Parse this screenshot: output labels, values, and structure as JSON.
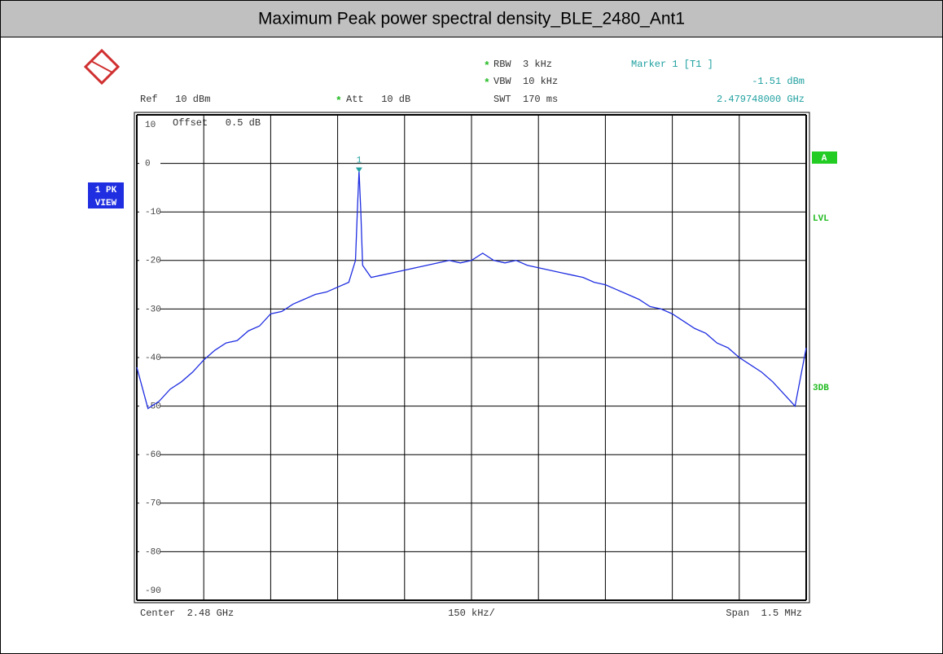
{
  "chart_data": {
    "type": "line",
    "title": "Maximum Peak power spectral density_BLE_2480_Ant1",
    "x": [
      2.47925,
      2.479275,
      2.4793,
      2.479325,
      2.47935,
      2.479375,
      2.4794,
      2.479425,
      2.47945,
      2.479475,
      2.4795,
      2.479525,
      2.47955,
      2.479575,
      2.4796,
      2.479625,
      2.47965,
      2.479675,
      2.4797,
      2.479725,
      2.47974,
      2.479745,
      2.479748,
      2.479752,
      2.479756,
      2.479775,
      2.4798,
      2.479825,
      2.47985,
      2.479875,
      2.4799,
      2.479925,
      2.47995,
      2.479975,
      2.48,
      2.480025,
      2.48005,
      2.480075,
      2.4801,
      2.480125,
      2.48015,
      2.480175,
      2.4802,
      2.480225,
      2.48025,
      2.480275,
      2.4803,
      2.480325,
      2.48035,
      2.480375,
      2.4804,
      2.480425,
      2.48045,
      2.480475,
      2.4805,
      2.480525,
      2.48055,
      2.480575,
      2.4806,
      2.480625,
      2.48065,
      2.480675,
      2.4807,
      2.480725,
      2.48075
    ],
    "series": [
      {
        "name": "1 PK",
        "color": "#1f2ee0",
        "values": [
          -42,
          -50.5,
          -49,
          -46.5,
          -45,
          -43,
          -40.5,
          -38.5,
          -37,
          -36.5,
          -34.5,
          -33.5,
          -31,
          -30.5,
          -29,
          -28,
          -27,
          -26.5,
          -25.5,
          -24.5,
          -20,
          -8,
          -1.51,
          -10,
          -21,
          -23.5,
          -23,
          -22.5,
          -22,
          -21.5,
          -21,
          -20.5,
          -20,
          -20.5,
          -20,
          -18.5,
          -20,
          -20.5,
          -20,
          -21,
          -21.5,
          -22,
          -22.5,
          -23,
          -23.5,
          -24.5,
          -25,
          -26,
          -27,
          -28,
          -29.5,
          -30,
          -31,
          -32.5,
          -34,
          -35,
          -37,
          -38,
          -40,
          -41.5,
          -43,
          -45,
          -47.5,
          -50,
          -38
        ]
      }
    ],
    "xlim": [
      2.47925,
      2.48075
    ],
    "xticks": [
      2.47925,
      2.4794,
      2.47955,
      2.4797,
      2.47985,
      2.48,
      2.48015,
      2.4803,
      2.48045,
      2.4806,
      2.48075
    ],
    "ylim": [
      -90,
      10
    ],
    "yticks": [
      10,
      0,
      -10,
      -20,
      -30,
      -40,
      -50,
      -60,
      -70,
      -80,
      -90
    ],
    "grid": true,
    "marker": {
      "label": "1",
      "x": 2.479748,
      "y": -1.51,
      "color": "#20a0a0"
    },
    "annotations": {
      "ref": "Ref   10 dBm",
      "att_flag": "*",
      "att": "Att   10 dB",
      "rbw_flag": "*",
      "rbw": "RBW  3 kHz",
      "vbw_flag": "*",
      "vbw": "VBW  10 kHz",
      "swt": "SWT  170 ms",
      "marker_name": "Marker 1 [T1 ]",
      "marker_level": "-1.51 dBm",
      "marker_freq": "2.479748000 GHz",
      "offset": "Offset   0.5 dB",
      "trace_mode": "VIEW",
      "screen": "A",
      "lvl": "LVL",
      "db3": "3DB",
      "center": "Center  2.48 GHz",
      "div": "150 kHz/",
      "span": "Span  1.5 MHz"
    }
  }
}
